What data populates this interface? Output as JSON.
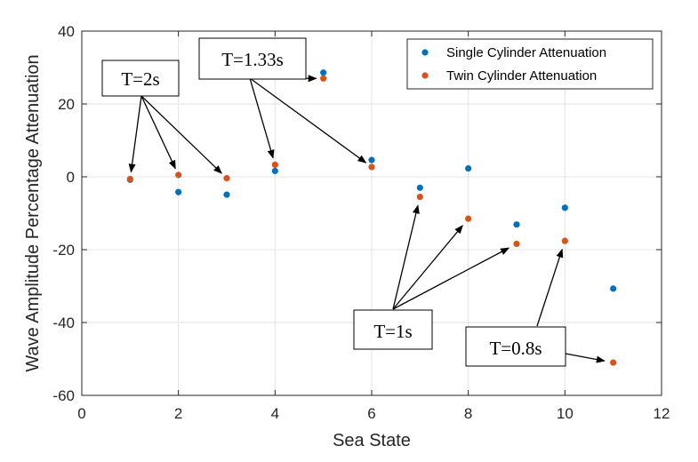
{
  "chart_data": {
    "type": "scatter",
    "title": "",
    "xlabel": "Sea State",
    "ylabel": "Wave Amplitude Percentage Attenuation",
    "xlim": [
      0,
      12
    ],
    "ylim": [
      -60,
      40
    ],
    "xticks": [
      0,
      2,
      4,
      6,
      8,
      10,
      12
    ],
    "yticks": [
      -60,
      -40,
      -20,
      0,
      20,
      40
    ],
    "grid": true,
    "legend_position": "top-right",
    "series": [
      {
        "name": "Single Cylinder Attenuation",
        "color": "#0072BD",
        "x": [
          1,
          2,
          3,
          4,
          5,
          6,
          7,
          8,
          9,
          10,
          11
        ],
        "y": [
          -0.8,
          -4.2,
          -4.9,
          1.6,
          28.6,
          4.6,
          -3.0,
          2.3,
          -13.1,
          -8.5,
          -30.7
        ]
      },
      {
        "name": "Twin Cylinder Attenuation",
        "color": "#D95319",
        "x": [
          1,
          2,
          3,
          4,
          5,
          6,
          7,
          8,
          9,
          10,
          11
        ],
        "y": [
          -0.6,
          0.5,
          -0.4,
          3.3,
          27.0,
          2.7,
          -5.5,
          -11.5,
          -18.4,
          -17.6,
          -51.0
        ]
      }
    ],
    "annotations": [
      {
        "text": "T=2s",
        "targets": [
          [
            1,
            -0.6
          ],
          [
            2,
            0.5
          ],
          [
            3,
            -0.4
          ]
        ]
      },
      {
        "text": "T=1.33s",
        "targets": [
          [
            4,
            3.3
          ],
          [
            5,
            27.0
          ],
          [
            6,
            2.7
          ]
        ]
      },
      {
        "text": "T=1s",
        "targets": [
          [
            7,
            -5.5
          ],
          [
            8,
            -11.5
          ],
          [
            9,
            -18.4
          ]
        ]
      },
      {
        "text": "T=0.8s",
        "targets": [
          [
            10,
            -17.6
          ],
          [
            11,
            -51.0
          ]
        ]
      }
    ]
  }
}
